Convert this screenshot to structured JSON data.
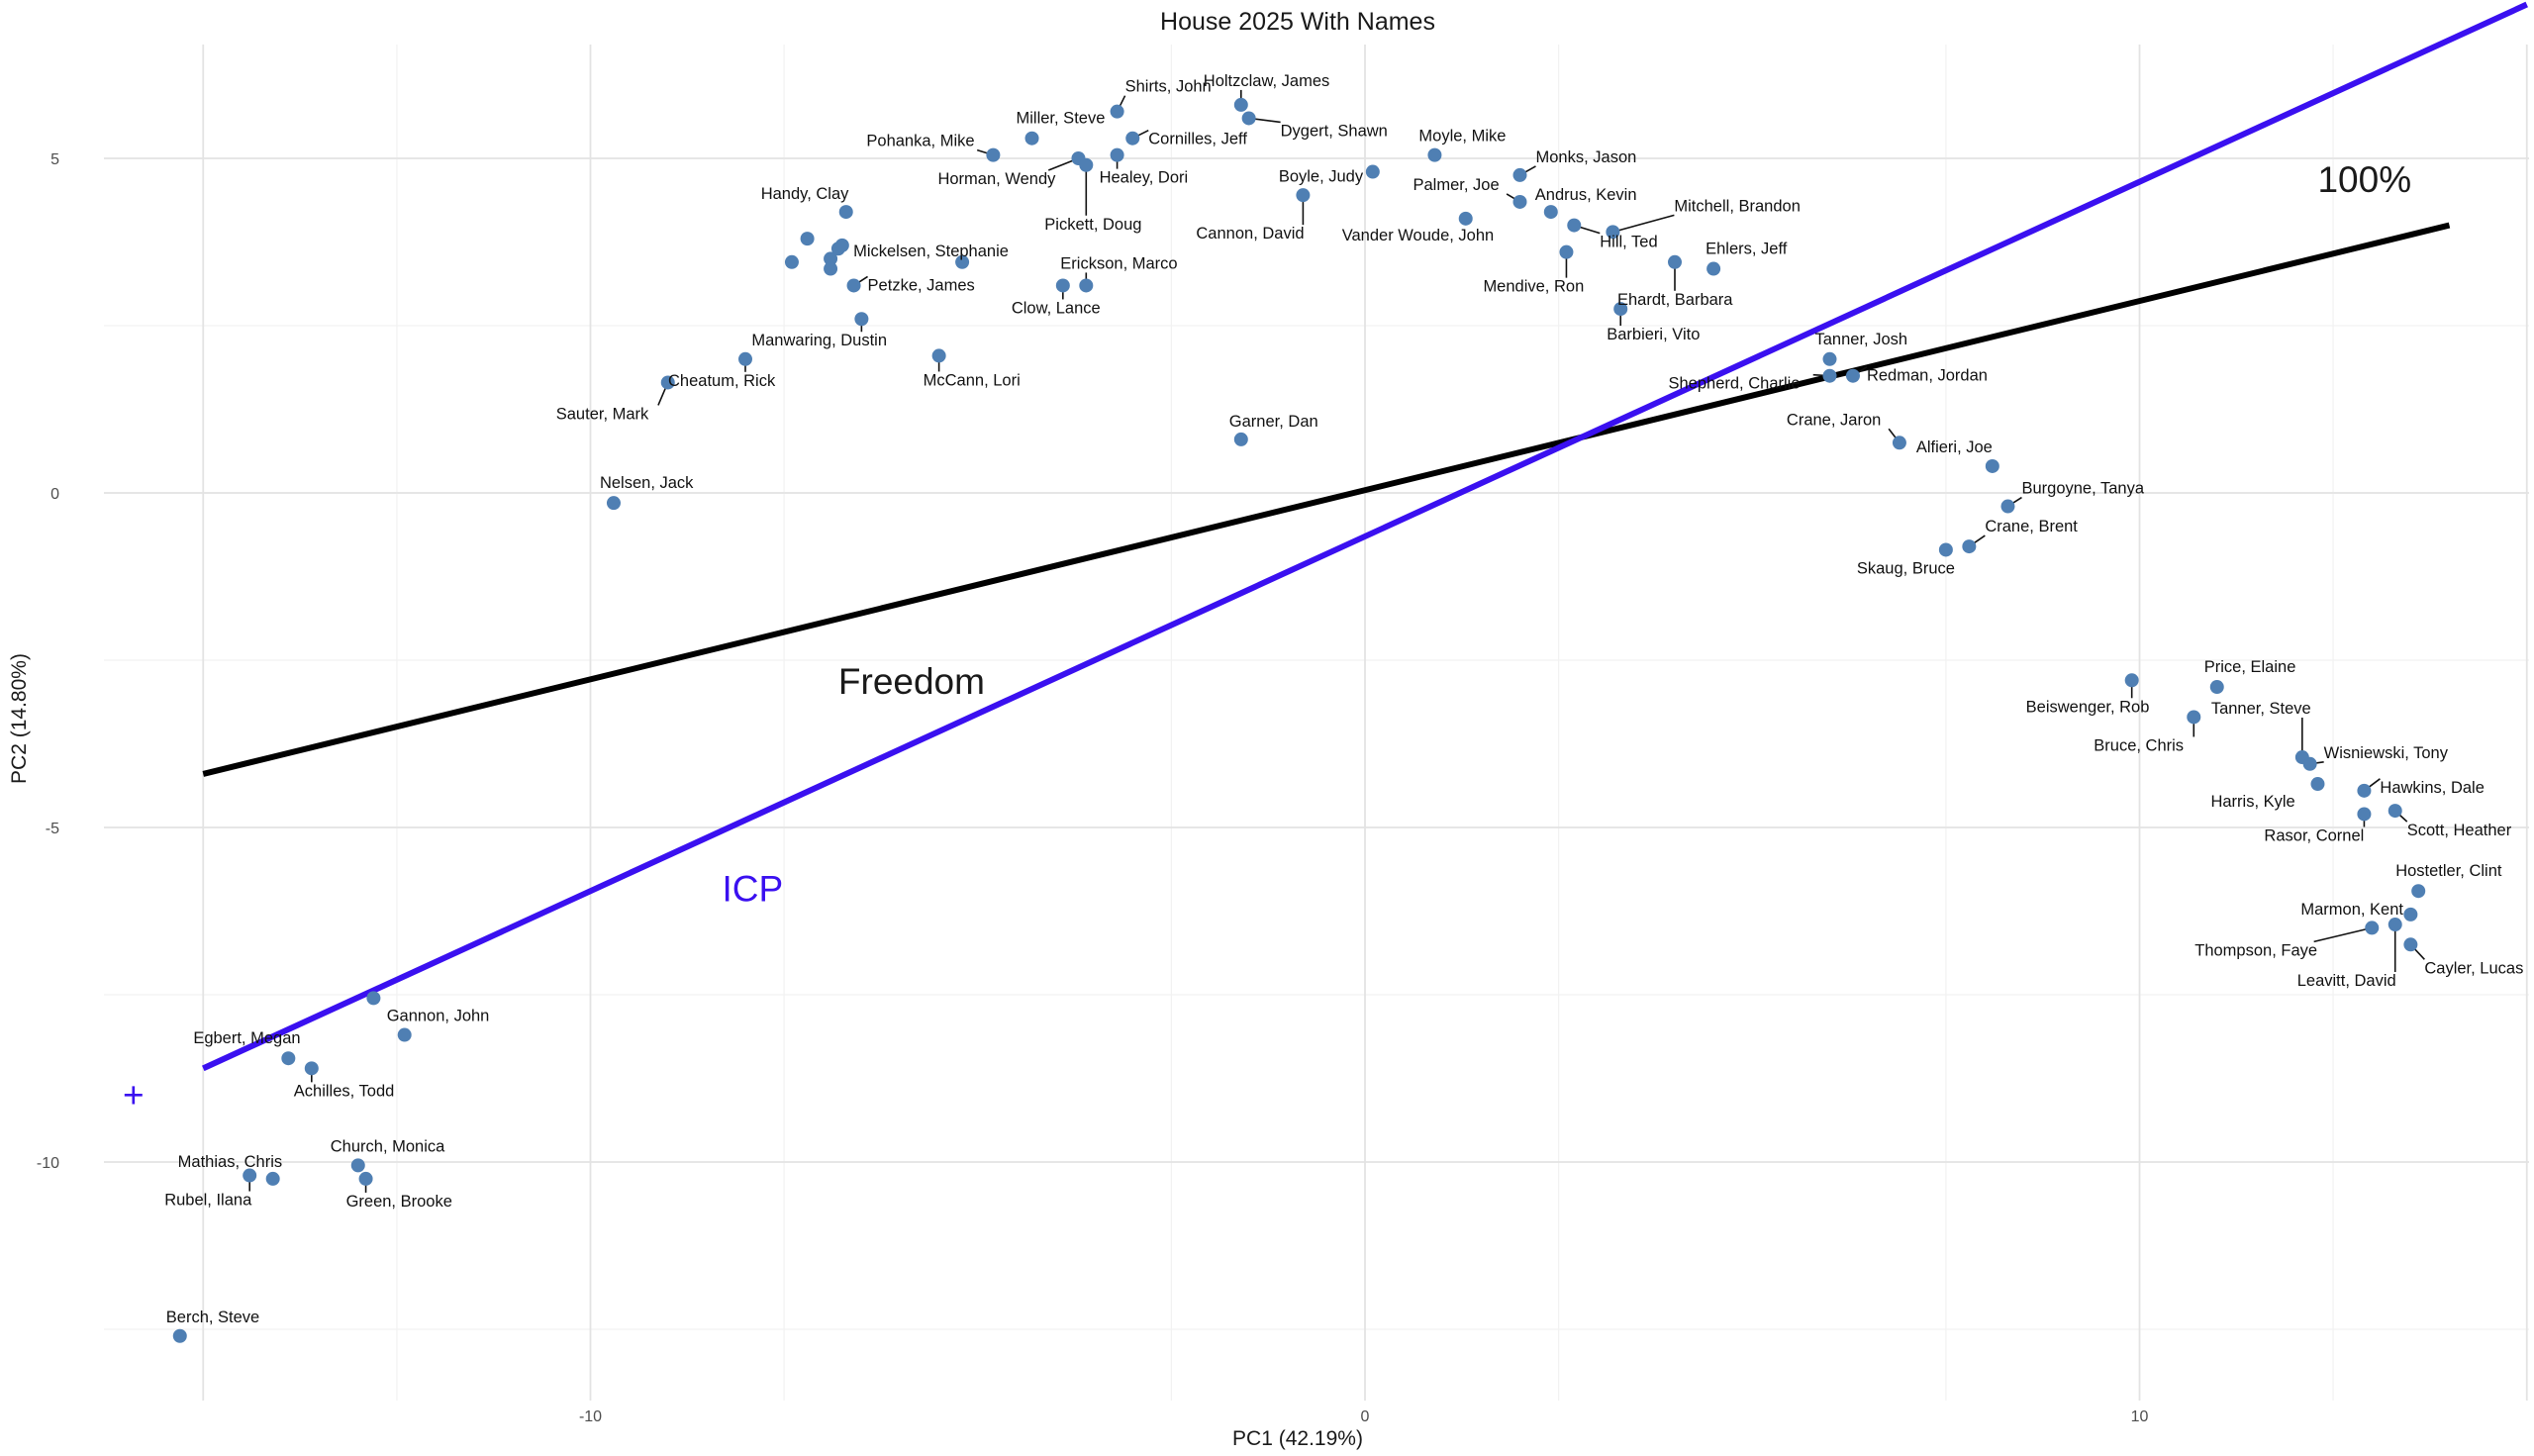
{
  "chart_data": {
    "type": "scatter",
    "title": "House 2025 With Names",
    "xlabel": "PC1 (42.19%)",
    "ylabel": "PC2 (14.80%)",
    "xlim": [
      -15.0,
      15.0
    ],
    "ylim": [
      -13.5,
      6.9
    ],
    "xticks": [
      -10,
      0,
      10
    ],
    "yticks": [
      5,
      0,
      -5,
      -10
    ],
    "grid": true,
    "point_color": "#4f7fb3",
    "points": [
      {
        "name": "Shirts, John",
        "x": -3.2,
        "y": 5.7
      },
      {
        "name": "Holtzclaw, James",
        "x": -1.6,
        "y": 5.8
      },
      {
        "name": "Dygert, Shawn",
        "x": -1.5,
        "y": 5.6
      },
      {
        "name": "Miller, Steve",
        "x": -4.3,
        "y": 5.3
      },
      {
        "name": "Pohanka, Mike",
        "x": -4.8,
        "y": 5.05
      },
      {
        "name": "Cornilles, Jeff",
        "x": -3.0,
        "y": 5.3
      },
      {
        "name": "Horman, Wendy",
        "x": -3.7,
        "y": 5.0
      },
      {
        "name": "Healey, Dori",
        "x": -3.2,
        "y": 5.05
      },
      {
        "name": "Pickett, Doug",
        "x": -3.6,
        "y": 4.9
      },
      {
        "name": "Moyle, Mike",
        "x": 0.9,
        "y": 5.05
      },
      {
        "name": "Monks, Jason",
        "x": 2.0,
        "y": 4.75
      },
      {
        "name": "Boyle, Judy",
        "x": 0.1,
        "y": 4.8
      },
      {
        "name": "Cannon, David",
        "x": -0.8,
        "y": 4.45
      },
      {
        "name": "Palmer, Joe",
        "x": 2.0,
        "y": 4.35
      },
      {
        "name": "Andrus, Kevin",
        "x": 2.4,
        "y": 4.2
      },
      {
        "name": "Mitchell, Brandon",
        "x": 3.2,
        "y": 3.9
      },
      {
        "name": "Hill, Ted",
        "x": 2.7,
        "y": 4.0
      },
      {
        "name": "Vander Woude, John",
        "x": 1.3,
        "y": 4.1
      },
      {
        "name": "Mendive, Ron",
        "x": 2.6,
        "y": 3.6
      },
      {
        "name": "Ehlers, Jeff",
        "x": 4.5,
        "y": 3.35
      },
      {
        "name": "Ehardt, Barbara",
        "x": 4.0,
        "y": 3.45
      },
      {
        "name": "Barbieri, Vito",
        "x": 3.3,
        "y": 2.75
      },
      {
        "name": "Handy, Clay",
        "x": -6.7,
        "y": 4.2
      },
      {
        "name": "Mickelsen, Stephanie",
        "x": -5.2,
        "y": 3.45
      },
      {
        "name": "Petzke, James",
        "x": -6.6,
        "y": 3.1
      },
      {
        "name": "Erickson, Marco",
        "x": -3.6,
        "y": 3.1
      },
      {
        "name": "Clow, Lance",
        "x": -3.9,
        "y": 3.1
      },
      {
        "name": "Manwaring, Dustin",
        "x": -6.5,
        "y": 2.6
      },
      {
        "name": "McCann, Lori",
        "x": -5.5,
        "y": 2.05
      },
      {
        "name": "Cheatum, Rick",
        "x": -8.0,
        "y": 2.0
      },
      {
        "name": "Sauter, Mark",
        "x": -9.0,
        "y": 1.65
      },
      {
        "name": "Nelsen, Jack",
        "x": -9.7,
        "y": -0.15
      },
      {
        "name": "",
        "x": -7.2,
        "y": 3.8
      },
      {
        "name": "",
        "x": -7.4,
        "y": 3.45
      },
      {
        "name": "",
        "x": -6.9,
        "y": 3.5
      },
      {
        "name": "",
        "x": -6.9,
        "y": 3.35
      },
      {
        "name": "",
        "x": -6.8,
        "y": 3.65
      },
      {
        "name": "",
        "x": -6.75,
        "y": 3.7
      },
      {
        "name": "Garner, Dan",
        "x": -1.6,
        "y": 0.8
      },
      {
        "name": "Tanner, Josh",
        "x": 6.0,
        "y": 2.0
      },
      {
        "name": "Shepherd, Charlie",
        "x": 6.0,
        "y": 1.75
      },
      {
        "name": "Redman, Jordan",
        "x": 6.3,
        "y": 1.75
      },
      {
        "name": "Crane, Jaron",
        "x": 6.9,
        "y": 0.75
      },
      {
        "name": "Alfieri, Joe",
        "x": 8.1,
        "y": 0.4
      },
      {
        "name": "Burgoyne, Tanya",
        "x": 8.3,
        "y": -0.2
      },
      {
        "name": "Crane, Brent",
        "x": 7.8,
        "y": -0.8
      },
      {
        "name": "Skaug, Bruce",
        "x": 7.5,
        "y": -0.85
      },
      {
        "name": "Beiswenger, Rob",
        "x": 9.9,
        "y": -2.8
      },
      {
        "name": "Price, Elaine",
        "x": 11.0,
        "y": -2.9
      },
      {
        "name": "Bruce, Chris",
        "x": 10.7,
        "y": -3.35
      },
      {
        "name": "Tanner, Steve",
        "x": 12.1,
        "y": -3.95
      },
      {
        "name": "Wisniewski, Tony",
        "x": 12.2,
        "y": -4.05
      },
      {
        "name": "Harris, Kyle",
        "x": 12.3,
        "y": -4.35
      },
      {
        "name": "Hawkins, Dale",
        "x": 12.9,
        "y": -4.45
      },
      {
        "name": "Rasor, Cornel",
        "x": 12.9,
        "y": -4.8
      },
      {
        "name": "Scott, Heather",
        "x": 13.3,
        "y": -4.75
      },
      {
        "name": "Hostetler, Clint",
        "x": 13.6,
        "y": -5.95
      },
      {
        "name": "Marmon, Kent",
        "x": 13.5,
        "y": -6.3
      },
      {
        "name": "Thompson, Faye",
        "x": 13.0,
        "y": -6.5
      },
      {
        "name": "Leavitt, David",
        "x": 13.3,
        "y": -6.45
      },
      {
        "name": "Cayler, Lucas",
        "x": 13.5,
        "y": -6.75
      },
      {
        "name": "",
        "x": -12.8,
        "y": -7.55
      },
      {
        "name": "Gannon, John",
        "x": -12.4,
        "y": -8.1
      },
      {
        "name": "Egbert, Megan",
        "x": -13.9,
        "y": -8.45
      },
      {
        "name": "Achilles, Todd",
        "x": -13.6,
        "y": -8.6
      },
      {
        "name": "Mathias, Chris",
        "x": -14.1,
        "y": -10.25
      },
      {
        "name": "Rubel, Ilana",
        "x": -14.4,
        "y": -10.2
      },
      {
        "name": "Church, Monica",
        "x": -13.0,
        "y": -10.05
      },
      {
        "name": "Green, Brooke",
        "x": -12.9,
        "y": -10.25
      },
      {
        "name": "Berch, Steve",
        "x": -15.3,
        "y": -12.6
      }
    ],
    "lines": [
      {
        "name": "100%",
        "color": "#000000",
        "start": [
          -15.0,
          -4.2
        ],
        "end": [
          14.0,
          4.0
        ]
      },
      {
        "name": "ICP",
        "color": "#3a10f0",
        "start": [
          -15.0,
          -8.6
        ],
        "end": [
          15.0,
          7.3
        ]
      }
    ],
    "annotations": [
      {
        "text": "100%",
        "x": 12.3,
        "y": 4.5,
        "color": "#1a1a1a"
      },
      {
        "text": "Freedom",
        "x": -6.8,
        "y": -3.0,
        "color": "#1a1a1a"
      },
      {
        "text": "ICP",
        "x": -8.3,
        "y": -6.1,
        "color": "#3a10f0"
      },
      {
        "text": "+",
        "x": -15.9,
        "y": -8.95,
        "color": "#3a10f0"
      }
    ]
  }
}
